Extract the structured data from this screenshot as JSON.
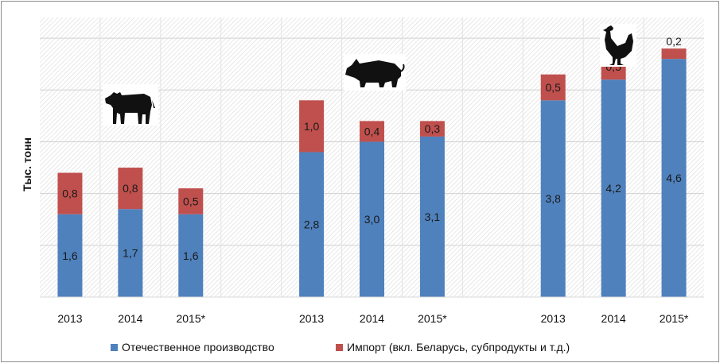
{
  "chart_data": {
    "type": "bar",
    "stacked": true,
    "title": "",
    "xlabel": "",
    "ylabel": "Тыс. тонн",
    "ylim": [
      0,
      5.4
    ],
    "grid": true,
    "legend_position": "bottom",
    "groups": [
      {
        "icon": "cow-icon",
        "categories": [
          "2013",
          "2014",
          "2015*"
        ],
        "series": [
          {
            "name": "Отечественное производство",
            "values": [
              1.6,
              1.7,
              1.6
            ],
            "labels": [
              "1,6",
              "1,7",
              "1,6"
            ]
          },
          {
            "name": "Импорт (вкл. Беларусь, субпродукты и т.д.)",
            "values": [
              0.8,
              0.8,
              0.5
            ],
            "labels": [
              "0,8",
              "0,8",
              "0,5"
            ]
          }
        ]
      },
      {
        "icon": "pig-icon",
        "categories": [
          "2013",
          "2014",
          "2015*"
        ],
        "series": [
          {
            "name": "Отечественное производство",
            "values": [
              2.8,
              3.0,
              3.1
            ],
            "labels": [
              "2,8",
              "3,0",
              "3,1"
            ]
          },
          {
            "name": "Импорт (вкл. Беларусь, субпродукты и т.д.)",
            "values": [
              1.0,
              0.4,
              0.3
            ],
            "labels": [
              "1,0",
              "0,4",
              "0,3"
            ]
          }
        ]
      },
      {
        "icon": "chicken-icon",
        "categories": [
          "2013",
          "2014",
          "2015*"
        ],
        "series": [
          {
            "name": "Отечественное производство",
            "values": [
              3.8,
              4.2,
              4.6
            ],
            "labels": [
              "3,8",
              "4,2",
              "4,6"
            ]
          },
          {
            "name": "Импорт (вкл. Беларусь, субпродукты и т.д.)",
            "values": [
              0.5,
              0.5,
              0.2
            ],
            "labels": [
              "0,5",
              "0,5",
              "0,2"
            ]
          }
        ]
      }
    ],
    "legend": [
      {
        "name": "Отечественное производство",
        "color": "#4f81bd"
      },
      {
        "name": "Импорт (вкл. Беларусь, субпродукты и т.д.)",
        "color": "#c0504d"
      }
    ],
    "colors": {
      "domestic": "#4f81bd",
      "import": "#c0504d"
    }
  }
}
